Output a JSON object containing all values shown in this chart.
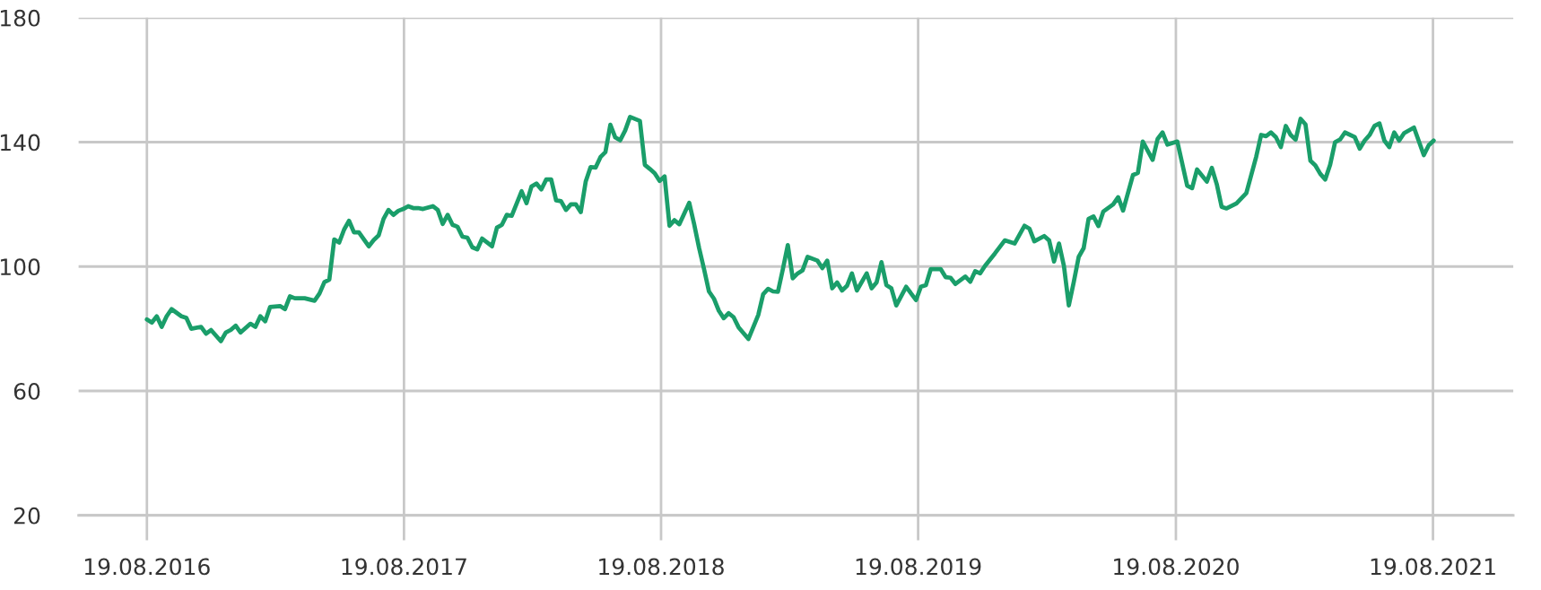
{
  "chart_data": {
    "type": "line",
    "x": [
      "2016-08-19",
      "2016-08-26",
      "2016-09-02",
      "2016-09-09",
      "2016-09-16",
      "2016-09-23",
      "2016-10-07",
      "2016-10-14",
      "2016-10-21",
      "2016-11-04",
      "2016-11-11",
      "2016-11-18",
      "2016-12-02",
      "2016-12-09",
      "2016-12-16",
      "2016-12-23",
      "2016-12-30",
      "2017-01-13",
      "2017-01-20",
      "2017-01-27",
      "2017-02-03",
      "2017-02-10",
      "2017-02-24",
      "2017-03-03",
      "2017-03-10",
      "2017-03-17",
      "2017-03-31",
      "2017-04-14",
      "2017-04-21",
      "2017-04-28",
      "2017-05-05",
      "2017-05-12",
      "2017-05-19",
      "2017-05-26",
      "2017-06-02",
      "2017-06-09",
      "2017-06-16",
      "2017-06-30",
      "2017-07-07",
      "2017-07-14",
      "2017-07-21",
      "2017-07-28",
      "2017-08-04",
      "2017-08-11",
      "2017-08-18",
      "2017-08-25",
      "2017-09-01",
      "2017-09-08",
      "2017-09-15",
      "2017-09-29",
      "2017-10-06",
      "2017-10-13",
      "2017-10-20",
      "2017-10-27",
      "2017-11-03",
      "2017-11-10",
      "2017-11-17",
      "2017-11-24",
      "2017-12-01",
      "2017-12-08",
      "2017-12-22",
      "2017-12-29",
      "2018-01-05",
      "2018-01-12",
      "2018-01-19",
      "2018-02-02",
      "2018-02-09",
      "2018-02-16",
      "2018-02-23",
      "2018-03-02",
      "2018-03-09",
      "2018-03-16",
      "2018-03-23",
      "2018-03-30",
      "2018-04-06",
      "2018-04-13",
      "2018-04-20",
      "2018-04-27",
      "2018-05-04",
      "2018-05-11",
      "2018-05-18",
      "2018-05-25",
      "2018-06-01",
      "2018-06-08",
      "2018-06-15",
      "2018-06-22",
      "2018-06-29",
      "2018-07-06",
      "2018-07-20",
      "2018-07-27",
      "2018-08-03",
      "2018-08-10",
      "2018-08-17",
      "2018-08-24",
      "2018-08-31",
      "2018-09-07",
      "2018-09-14",
      "2018-09-28",
      "2018-10-05",
      "2018-10-12",
      "2018-10-19",
      "2018-10-26",
      "2018-11-02",
      "2018-11-09",
      "2018-11-16",
      "2018-11-23",
      "2018-11-30",
      "2018-12-07",
      "2018-12-21",
      "2019-01-04",
      "2019-01-11",
      "2019-01-18",
      "2019-01-25",
      "2019-02-01",
      "2019-02-08",
      "2019-02-15",
      "2019-02-22",
      "2019-03-01",
      "2019-03-08",
      "2019-03-15",
      "2019-03-29",
      "2019-04-05",
      "2019-04-12",
      "2019-04-19",
      "2019-04-26",
      "2019-05-03",
      "2019-05-10",
      "2019-05-17",
      "2019-05-24",
      "2019-06-07",
      "2019-06-14",
      "2019-06-21",
      "2019-06-28",
      "2019-07-05",
      "2019-07-12",
      "2019-07-19",
      "2019-08-02",
      "2019-08-16",
      "2019-08-23",
      "2019-08-30",
      "2019-09-06",
      "2019-09-20",
      "2019-09-27",
      "2019-10-04",
      "2019-10-11",
      "2019-10-25",
      "2019-11-01",
      "2019-11-08",
      "2019-11-15",
      "2019-11-22",
      "2019-12-06",
      "2019-12-20",
      "2020-01-03",
      "2020-01-17",
      "2020-01-24",
      "2020-01-31",
      "2020-02-14",
      "2020-02-21",
      "2020-02-28",
      "2020-03-06",
      "2020-03-13",
      "2020-03-20",
      "2020-03-27",
      "2020-04-03",
      "2020-04-10",
      "2020-04-17",
      "2020-04-24",
      "2020-05-01",
      "2020-05-08",
      "2020-05-22",
      "2020-05-29",
      "2020-06-05",
      "2020-06-19",
      "2020-06-26",
      "2020-07-03",
      "2020-07-17",
      "2020-07-24",
      "2020-07-31",
      "2020-08-07",
      "2020-08-21",
      "2020-09-04",
      "2020-09-11",
      "2020-09-18",
      "2020-10-02",
      "2020-10-09",
      "2020-10-16",
      "2020-10-23",
      "2020-10-30",
      "2020-11-13",
      "2020-11-27",
      "2020-12-11",
      "2020-12-18",
      "2020-12-25",
      "2021-01-01",
      "2021-01-08",
      "2021-01-15",
      "2021-01-22",
      "2021-01-29",
      "2021-02-05",
      "2021-02-12",
      "2021-02-19",
      "2021-02-26",
      "2021-03-05",
      "2021-03-12",
      "2021-03-19",
      "2021-03-26",
      "2021-04-02",
      "2021-04-09",
      "2021-04-16",
      "2021-04-30",
      "2021-05-07",
      "2021-05-14",
      "2021-05-21",
      "2021-05-28",
      "2021-06-04",
      "2021-06-11",
      "2021-06-18",
      "2021-06-25",
      "2021-07-02",
      "2021-07-09",
      "2021-07-23",
      "2021-08-06",
      "2021-08-13",
      "2021-08-20"
    ],
    "series": [
      {
        "color": "#1a9e6a",
        "values": [
          83,
          82,
          84,
          80.6,
          84,
          86.3,
          84,
          83.5,
          80,
          80.6,
          78.4,
          79.6,
          76,
          78.8,
          79.6,
          81,
          78.8,
          81.6,
          80.6,
          84,
          82.4,
          87,
          87.3,
          86.3,
          90.4,
          89.8,
          89.8,
          89,
          91.3,
          95,
          95.8,
          108.7,
          107.7,
          111.9,
          114.7,
          111,
          111,
          106.5,
          108.5,
          110,
          115.3,
          118.2,
          116.6,
          117.9,
          118.5,
          119.4,
          118.8,
          118.8,
          118.5,
          119.4,
          118.2,
          113.7,
          116.6,
          113.4,
          112.8,
          109.6,
          109.3,
          106.2,
          105.5,
          109,
          106.5,
          112.5,
          113.4,
          116.6,
          116.3,
          124.2,
          120.4,
          125.7,
          126.7,
          124.8,
          128,
          128,
          121.3,
          121,
          118.2,
          120,
          120,
          117.5,
          127.3,
          132,
          131.8,
          135.2,
          136.8,
          145.6,
          141.5,
          140.6,
          143.7,
          148.1,
          146.8,
          132.7,
          131.4,
          130,
          127.5,
          129,
          113.1,
          114.9,
          113.6,
          120.5,
          113.6,
          106,
          99.2,
          92,
          89.7,
          85.8,
          83.4,
          85,
          83.7,
          80.5,
          76.7,
          84.4,
          91.1,
          92.8,
          92,
          91.9,
          99.2,
          106.9,
          96.2,
          97.8,
          98.8,
          103.1,
          101.9,
          99.5,
          101.9,
          93,
          94.9,
          92.3,
          93.8,
          97.8,
          92.3,
          97.8,
          93,
          94.9,
          101.4,
          94,
          93,
          87.5,
          93.5,
          89.2,
          93.5,
          94,
          99.2,
          99.2,
          96.6,
          96.4,
          94.4,
          96.8,
          95.1,
          98.5,
          97.8,
          100.2,
          104.2,
          108.4,
          107.4,
          113.1,
          112.2,
          108.1,
          109.8,
          108.4,
          101.6,
          107.4,
          100.2,
          87.5,
          95,
          103.1,
          105.9,
          115.3,
          116.1,
          113,
          117.7,
          120,
          122.3,
          118,
          129.4,
          130.1,
          140.2,
          134.3,
          141,
          143.1,
          139.2,
          140.2,
          126,
          125.2,
          131.2,
          127.3,
          131.7,
          126.5,
          119.2,
          118.7,
          120.3,
          123.6,
          135.3,
          142.3,
          141.9,
          143.1,
          141.6,
          138.4,
          145.2,
          142.3,
          140.8,
          147.5,
          145.7,
          134,
          132.5,
          129.8,
          128,
          132.7,
          140,
          140.8,
          143.1,
          141.6,
          137.9,
          140.5,
          142.3,
          145.2,
          146,
          140.5,
          138.4,
          143.1,
          140.5,
          142.9,
          144.7,
          135.8,
          139,
          140.5
        ]
      }
    ],
    "xlim": [
      "2016-05-14",
      "2021-12-11"
    ],
    "xticks": [
      {
        "value": "2016-08-19",
        "label": "19.08.2016"
      },
      {
        "value": "2017-08-19",
        "label": "19.08.2017"
      },
      {
        "value": "2018-08-19",
        "label": "19.08.2018"
      },
      {
        "value": "2019-08-19",
        "label": "19.08.2019"
      },
      {
        "value": "2020-08-19",
        "label": "19.08.2020"
      },
      {
        "value": "2021-08-19",
        "label": "19.08.2021"
      }
    ],
    "ylim": [
      20,
      180
    ],
    "yticks": [
      20,
      60,
      100,
      140,
      180
    ],
    "grid": true,
    "legend": false,
    "marker": "none",
    "line_style": "solid"
  }
}
